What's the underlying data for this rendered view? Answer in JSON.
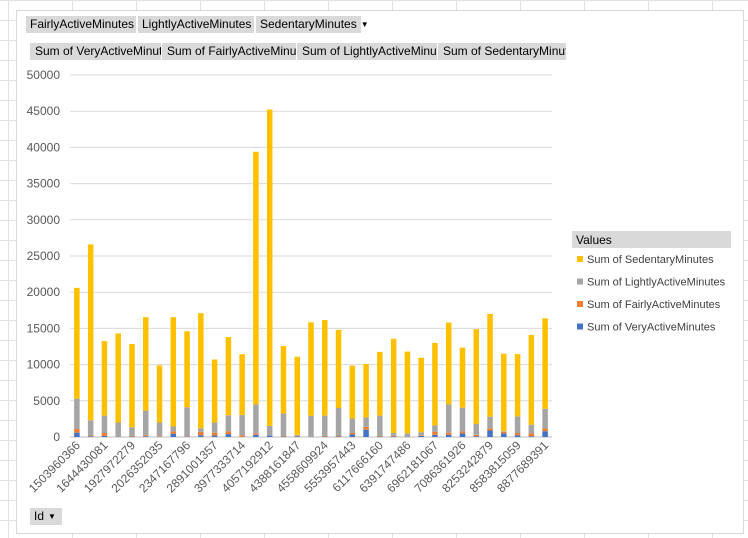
{
  "filters": [
    {
      "label": "FairlyActiveMinutes"
    },
    {
      "label": "LightlyActiveMinutes"
    },
    {
      "label": "SedentaryMinutes"
    }
  ],
  "value_buttons": [
    "Sum of VeryActiveMinutes",
    "Sum of FairlyActiveMinutes",
    "Sum of LightlyActiveMinutes",
    "Sum of SedentaryMinutes"
  ],
  "axis_button": {
    "label": "Id"
  },
  "legend_title": "Values",
  "colors": {
    "VeryActive": "#4472c4",
    "FairlyActive": "#ed7d31",
    "LightlyActive": "#a5a5a5",
    "Sedentary": "#ffc000"
  },
  "chart_data": {
    "type": "bar",
    "stacked": true,
    "ylim": [
      0,
      50000
    ],
    "yticks": [
      0,
      5000,
      10000,
      15000,
      20000,
      25000,
      30000,
      35000,
      40000,
      45000,
      50000
    ],
    "categories": [
      "1503960366",
      "1624580081",
      "1644430081",
      "1844505072",
      "1927972279",
      "2022484408",
      "2026352035",
      "2320127002",
      "2347167796",
      "2873212765",
      "2891001357",
      "3372868164",
      "3977333714",
      "4020332650",
      "4057192912",
      "4319703577",
      "4388161847",
      "4445114986",
      "4558609924",
      "4702921684",
      "5553957443",
      "5577150313",
      "6117666160",
      "6290855005",
      "6391747486",
      "6775888955",
      "6962181067",
      "7007744171",
      "7086361926",
      "8053475328",
      "8253242879",
      "8378563200",
      "8583815059",
      "8792009665",
      "8877689391"
    ],
    "category_labels_shown": [
      "1503960366",
      "1644430081",
      "1927972279",
      "2026352035",
      "2347167796",
      "2891001357",
      "3977333714",
      "4057192912",
      "4388161847",
      "4558609924",
      "5553957443",
      "6117666160",
      "6391747486",
      "6962181067",
      "7086361926",
      "8253242879",
      "8583815059",
      "8877689391"
    ],
    "series": [
      {
        "name": "Sum of VeryActiveMinutes",
        "values": [
          600,
          100,
          150,
          50,
          50,
          100,
          0,
          450,
          50,
          250,
          200,
          400,
          30,
          300,
          200,
          60,
          100,
          20,
          50,
          100,
          350,
          1000,
          50,
          60,
          50,
          150,
          300,
          300,
          500,
          100,
          900,
          500,
          250,
          100,
          800
        ]
      },
      {
        "name": "Sum of FairlyActiveMinutes",
        "values": [
          500,
          100,
          400,
          50,
          100,
          150,
          100,
          300,
          60,
          450,
          400,
          400,
          200,
          200,
          30,
          100,
          80,
          20,
          100,
          100,
          200,
          400,
          100,
          100,
          50,
          100,
          400,
          300,
          250,
          200,
          300,
          200,
          300,
          400,
          400
        ]
      },
      {
        "name": "Sum of LightlyActiveMinutes",
        "values": [
          4200,
          2100,
          2400,
          1900,
          1200,
          3400,
          1900,
          700,
          4000,
          500,
          1400,
          2200,
          2800,
          4000,
          1300,
          3100,
          100,
          2900,
          2800,
          3800,
          2000,
          1300,
          2800,
          400,
          400,
          400,
          900,
          3900,
          3300,
          1500,
          1600,
          100,
          2300,
          1200,
          2700
        ]
      },
      {
        "name": "Sum of SedentaryMinutes",
        "values": [
          15300,
          24300,
          10300,
          12300,
          11500,
          12900,
          7900,
          15100,
          10500,
          15900,
          8700,
          10800,
          8400,
          34900,
          43700,
          9300,
          10800,
          12900,
          13200,
          10800,
          7300,
          7400,
          8800,
          13000,
          11300,
          10300,
          11400,
          11300,
          8300,
          13100,
          14200,
          10700,
          8600,
          12400,
          12500
        ]
      }
    ]
  }
}
